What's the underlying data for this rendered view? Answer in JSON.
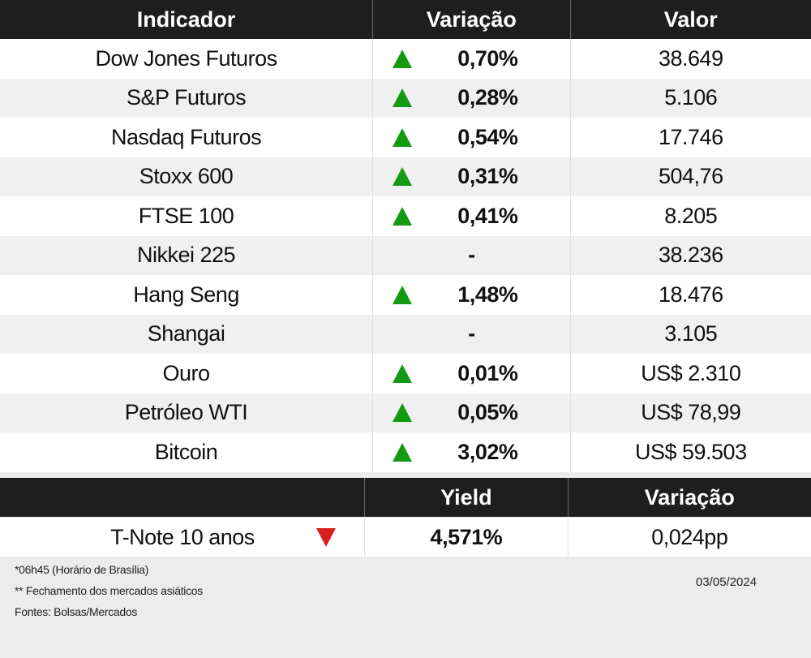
{
  "table": {
    "headers": [
      "Indicador",
      "Variação",
      "Valor"
    ],
    "rows": [
      {
        "indicador": "Dow Jones Futuros",
        "variacao": "0,70%",
        "direction": "up",
        "valor": "38.649"
      },
      {
        "indicador": "S&P Futuros",
        "variacao": "0,28%",
        "direction": "up",
        "valor": "5.106"
      },
      {
        "indicador": "Nasdaq Futuros",
        "variacao": "0,54%",
        "direction": "up",
        "valor": "17.746"
      },
      {
        "indicador": "Stoxx 600",
        "variacao": "0,31%",
        "direction": "up",
        "valor": "504,76"
      },
      {
        "indicador": "FTSE 100",
        "variacao": "0,41%",
        "direction": "up",
        "valor": "8.205"
      },
      {
        "indicador": "Nikkei 225",
        "variacao": "-",
        "direction": "none",
        "valor": "38.236"
      },
      {
        "indicador": "Hang Seng",
        "variacao": "1,48%",
        "direction": "up",
        "valor": "18.476"
      },
      {
        "indicador": "Shangai",
        "variacao": "-",
        "direction": "none",
        "valor": "3.105"
      },
      {
        "indicador": "Ouro",
        "variacao": "0,01%",
        "direction": "up",
        "valor": "US$ 2.310"
      },
      {
        "indicador": "Petróleo WTI",
        "variacao": "0,05%",
        "direction": "up",
        "valor": "US$ 78,99"
      },
      {
        "indicador": "Bitcoin",
        "variacao": "3,02%",
        "direction": "up",
        "valor": "US$ 59.503"
      }
    ]
  },
  "treasury": {
    "headers": [
      "",
      "Yield",
      "Variação"
    ],
    "row": {
      "indicador": "T-Note 10 anos",
      "direction": "down",
      "yield": "4,571%",
      "variacao": "0,024pp"
    }
  },
  "footer": {
    "notes": [
      "*06h45 (Horário de Brasília)",
      "** Fechamento dos mercados asiáticos",
      "Fontes: Bolsas/Mercados"
    ],
    "date": "03/05/2024"
  },
  "colors": {
    "up": "#129b12",
    "down": "#d81f1f",
    "header_bg": "#1e1e1e"
  },
  "icons": {
    "up": "triangle-up-icon",
    "down": "triangle-down-icon"
  }
}
